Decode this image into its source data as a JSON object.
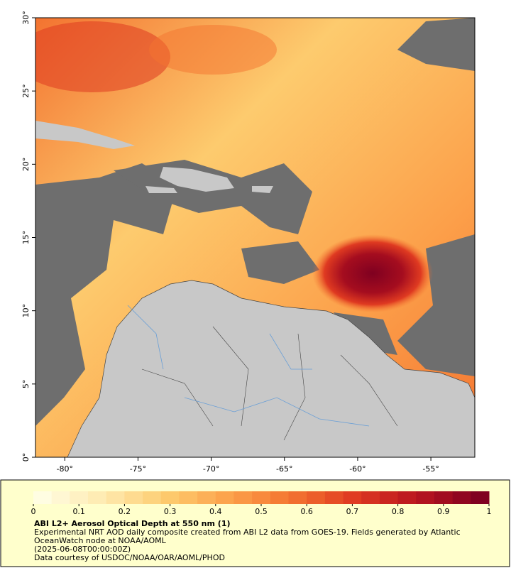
{
  "map": {
    "xlim": [
      -82,
      -52
    ],
    "ylim": [
      0,
      30
    ],
    "xticks": [
      {
        "value": -80,
        "label": "-80°"
      },
      {
        "value": -75,
        "label": "-75°"
      },
      {
        "value": -70,
        "label": "-70°"
      },
      {
        "value": -65,
        "label": "-65°"
      },
      {
        "value": -60,
        "label": "-60°"
      },
      {
        "value": -55,
        "label": "-55°"
      }
    ],
    "yticks": [
      {
        "value": 0,
        "label": "0°"
      },
      {
        "value": 5,
        "label": "5°"
      },
      {
        "value": 10,
        "label": "10°"
      },
      {
        "value": 15,
        "label": "15°"
      },
      {
        "value": 20,
        "label": "20°"
      },
      {
        "value": 25,
        "label": "25°"
      },
      {
        "value": 30,
        "label": "30°"
      }
    ]
  },
  "colorbar": {
    "lim": [
      0,
      1
    ],
    "ticks": [
      0,
      0.1,
      0.2,
      0.3,
      0.4,
      0.5,
      0.6,
      0.7,
      0.8,
      0.9,
      1
    ],
    "colors": [
      "#fffde2",
      "#fee9ad",
      "#fdcb6e",
      "#fca04a",
      "#f37330",
      "#df3a21",
      "#b8141f",
      "#800020"
    ]
  },
  "caption": {
    "title": "ABI L2+ Aerosol Optical Depth at 550 nm (1)",
    "description": "Experimental NRT AOD daily composite created from ABI L2 data from GOES-19. Fields generated by Atlantic OceanWatch node at NOAA/AOML",
    "time": "(2025-06-08T00:00:00Z)",
    "credit": "Data courtesy of USDOC/NOAA/OAR/AOML/PHOD"
  }
}
